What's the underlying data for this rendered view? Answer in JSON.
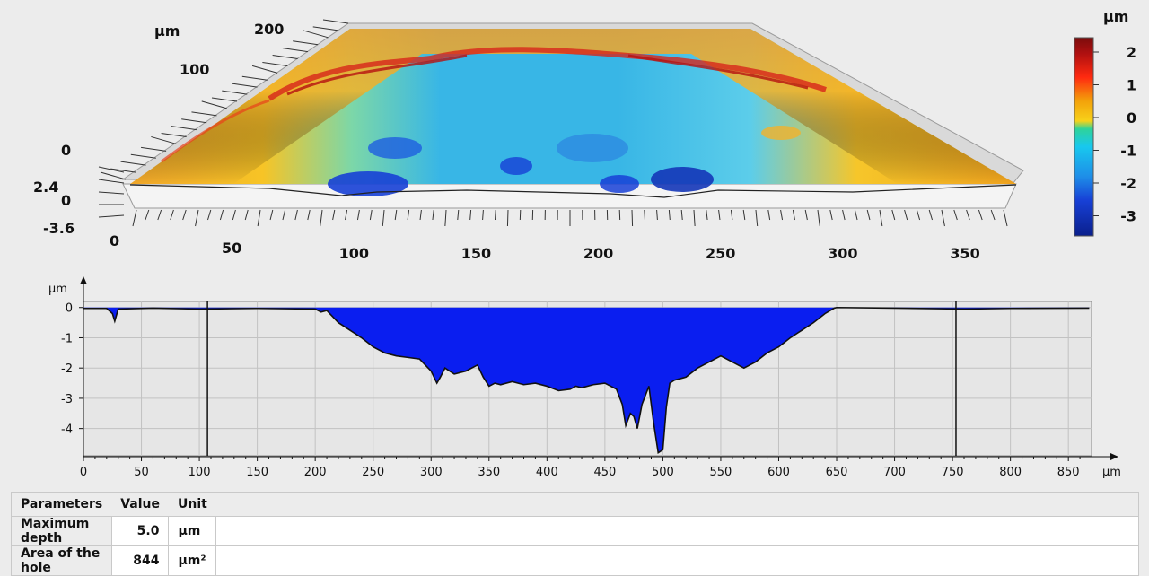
{
  "surface_view": {
    "unit_label": "µm",
    "y_unit_label": "µm",
    "y_ticks": [
      "200",
      "100",
      "0"
    ],
    "z_ticks": [
      "2.4",
      "0",
      "-3.6"
    ],
    "x_ticks": [
      "0",
      "50",
      "100",
      "150",
      "200",
      "250",
      "300",
      "350"
    ]
  },
  "colorbar": {
    "unit": "µm",
    "ticks": [
      "2",
      "1",
      "0",
      "-1",
      "-2",
      "-3"
    ],
    "colors": [
      "#7a0c0c",
      "#d81818",
      "#ff4a10",
      "#f3a20a",
      "#f7d21a",
      "#2ed39a",
      "#18c8ee",
      "#1e8ee8",
      "#1740d6",
      "#0a1f8c"
    ]
  },
  "chart_data": {
    "type": "area",
    "ylabel": "µm",
    "xlabel": "µm",
    "xlim": [
      0,
      870
    ],
    "ylim": [
      -4.9,
      0.2
    ],
    "x_ticks": [
      0,
      50,
      100,
      150,
      200,
      250,
      300,
      350,
      400,
      450,
      500,
      550,
      600,
      650,
      700,
      750,
      800,
      850
    ],
    "y_ticks": [
      0,
      -1,
      -2,
      -3,
      -4
    ],
    "markers": [
      107,
      753
    ],
    "fill_color": "#0a1ef0",
    "x": [
      0,
      20,
      25,
      27,
      30,
      60,
      100,
      150,
      200,
      205,
      210,
      220,
      240,
      250,
      260,
      270,
      280,
      290,
      300,
      305,
      308,
      312,
      320,
      330,
      340,
      345,
      350,
      355,
      360,
      370,
      380,
      390,
      400,
      410,
      420,
      425,
      430,
      440,
      450,
      460,
      465,
      468,
      472,
      475,
      478,
      482,
      488,
      492,
      496,
      500,
      503,
      506,
      510,
      520,
      530,
      540,
      550,
      560,
      570,
      580,
      590,
      600,
      610,
      620,
      630,
      640,
      648,
      650,
      700,
      760,
      800,
      868
    ],
    "y": [
      -0.03,
      -0.03,
      -0.2,
      -0.45,
      -0.05,
      -0.02,
      -0.05,
      -0.03,
      -0.05,
      -0.15,
      -0.1,
      -0.5,
      -1.0,
      -1.3,
      -1.5,
      -1.6,
      -1.65,
      -1.7,
      -2.1,
      -2.5,
      -2.3,
      -2.0,
      -2.2,
      -2.1,
      -1.9,
      -2.3,
      -2.6,
      -2.5,
      -2.55,
      -2.45,
      -2.55,
      -2.5,
      -2.6,
      -2.75,
      -2.7,
      -2.6,
      -2.65,
      -2.55,
      -2.5,
      -2.7,
      -3.2,
      -3.9,
      -3.5,
      -3.6,
      -4.0,
      -3.2,
      -2.6,
      -3.8,
      -4.8,
      -4.7,
      -3.3,
      -2.5,
      -2.4,
      -2.3,
      -2.0,
      -1.8,
      -1.6,
      -1.8,
      -2.0,
      -1.8,
      -1.5,
      -1.3,
      -1.0,
      -0.75,
      -0.5,
      -0.2,
      -0.02,
      0.0,
      -0.02,
      -0.05,
      -0.03,
      -0.02
    ]
  },
  "parameters_table": {
    "headers": [
      "Parameters",
      "Value",
      "Unit"
    ],
    "rows": [
      {
        "name": "Maximum depth",
        "value": "5.0",
        "unit": "µm"
      },
      {
        "name": "Area of the hole",
        "value": "844",
        "unit": "µm²"
      }
    ]
  }
}
